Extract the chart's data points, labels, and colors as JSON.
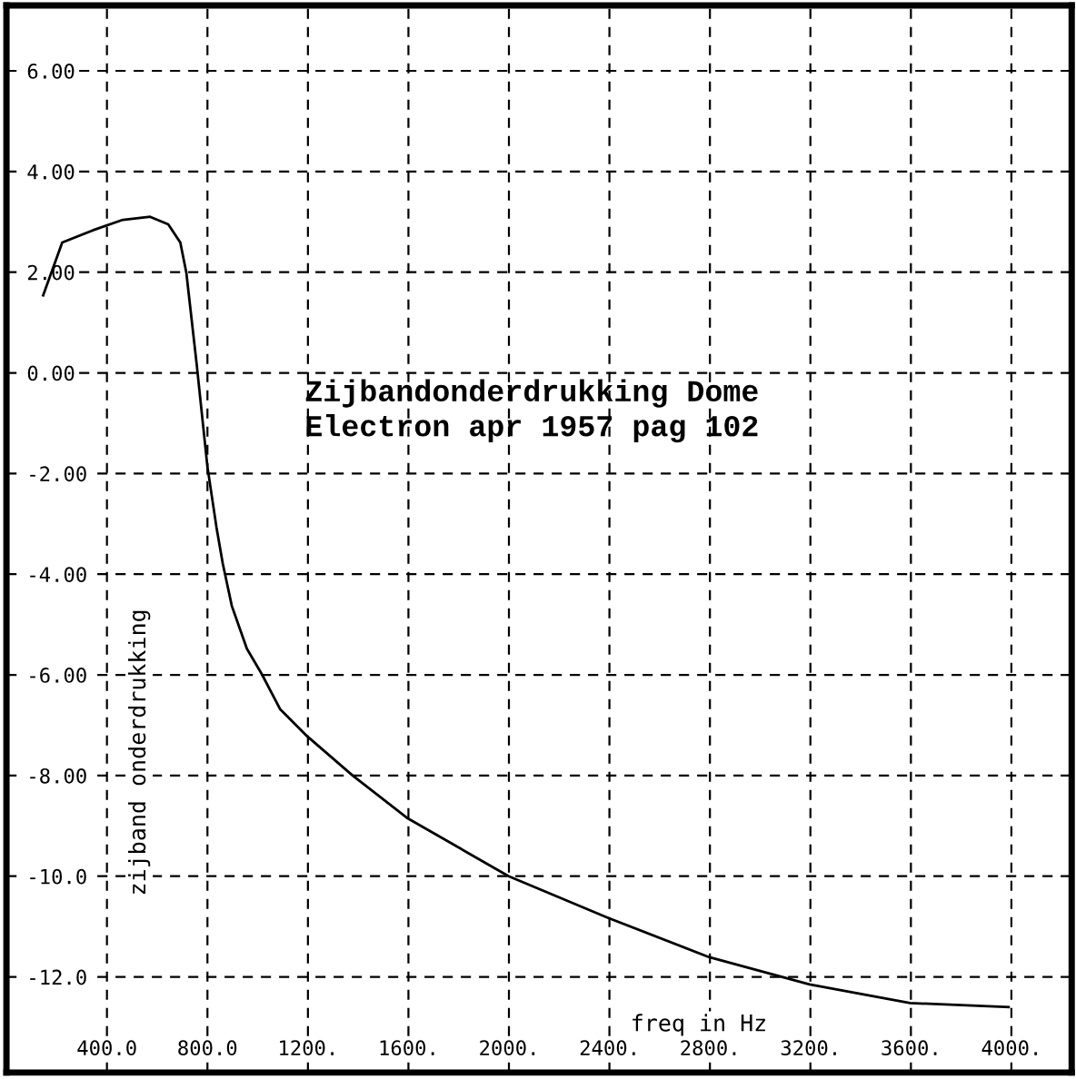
{
  "chart_data": {
    "type": "line",
    "title": "Zijbandonderdrukking Dome\nElectron apr 1957 pag 102",
    "xlabel": "freq in Hz",
    "ylabel": "zijband onderdrukking",
    "x": [
      146,
      222,
      343,
      463,
      572,
      644,
      692,
      716,
      757,
      800,
      836,
      861,
      897,
      957,
      1017,
      1089,
      1197,
      1378,
      1594,
      1999,
      2396,
      2798,
      3197,
      3597,
      3989
    ],
    "series": [
      {
        "color": "#000000",
        "values": [
          1.54,
          2.59,
          2.83,
          3.04,
          3.1,
          2.95,
          2.59,
          1.99,
          0.18,
          -1.87,
          -3.07,
          -3.79,
          -4.63,
          -5.48,
          -5.99,
          -6.68,
          -7.22,
          -8.0,
          -8.84,
          -10.0,
          -10.83,
          -11.61,
          -12.15,
          -12.52,
          -12.6
        ]
      }
    ],
    "xlim": [
      0,
      4240
    ],
    "ylim": [
      -13.9,
      7.3
    ],
    "xticks": [
      {
        "value": 400,
        "label": "400.0"
      },
      {
        "value": 800,
        "label": "800.0"
      },
      {
        "value": 1200,
        "label": "1200."
      },
      {
        "value": 1600,
        "label": "1600."
      },
      {
        "value": 2000,
        "label": "2000."
      },
      {
        "value": 2400,
        "label": "2400."
      },
      {
        "value": 2800,
        "label": "2800."
      },
      {
        "value": 3200,
        "label": "3200."
      },
      {
        "value": 3600,
        "label": "3600."
      },
      {
        "value": 4000,
        "label": "4000."
      }
    ],
    "yticks": [
      {
        "value": 6,
        "label": "6.00"
      },
      {
        "value": 4,
        "label": "4.00"
      },
      {
        "value": 2,
        "label": "2.00"
      },
      {
        "value": 0,
        "label": "0.00"
      },
      {
        "value": -2,
        "label": "-2.00"
      },
      {
        "value": -4,
        "label": "-4.00"
      },
      {
        "value": -6,
        "label": "-6.00"
      },
      {
        "value": -8,
        "label": "-8.00"
      },
      {
        "value": -10,
        "label": "-10.0"
      },
      {
        "value": -12,
        "label": "-12.0"
      }
    ],
    "grid": true,
    "legend": false,
    "marker": "none",
    "line_style": "solid"
  }
}
